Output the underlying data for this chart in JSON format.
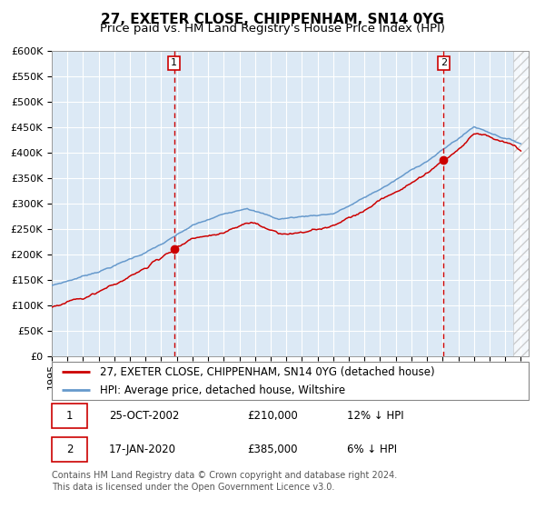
{
  "title": "27, EXETER CLOSE, CHIPPENHAM, SN14 0YG",
  "subtitle": "Price paid vs. HM Land Registry's House Price Index (HPI)",
  "ylim": [
    0,
    600000
  ],
  "yticks": [
    0,
    50000,
    100000,
    150000,
    200000,
    250000,
    300000,
    350000,
    400000,
    450000,
    500000,
    550000,
    600000
  ],
  "xlim_min": 1995,
  "xlim_max": 2025.5,
  "hatch_start": 2024.5,
  "plot_bg_color": "#dce9f5",
  "grid_color": "#ffffff",
  "red_line_color": "#cc0000",
  "blue_line_color": "#6699cc",
  "vline_color": "#cc0000",
  "marker_color": "#cc0000",
  "sale1_date_num": 2002.82,
  "sale1_price": 210000,
  "sale1_label": "1",
  "sale2_date_num": 2020.05,
  "sale2_price": 385000,
  "sale2_label": "2",
  "legend_red": "27, EXETER CLOSE, CHIPPENHAM, SN14 0YG (detached house)",
  "legend_blue": "HPI: Average price, detached house, Wiltshire",
  "table_row1": [
    "1",
    "25-OCT-2002",
    "£210,000",
    "12% ↓ HPI"
  ],
  "table_row2": [
    "2",
    "17-JAN-2020",
    "£385,000",
    "6% ↓ HPI"
  ],
  "footer": "Contains HM Land Registry data © Crown copyright and database right 2024.\nThis data is licensed under the Open Government Licence v3.0.",
  "title_fontsize": 11,
  "subtitle_fontsize": 9.5,
  "tick_fontsize": 8,
  "legend_fontsize": 8.5,
  "table_fontsize": 8.5,
  "footer_fontsize": 7
}
